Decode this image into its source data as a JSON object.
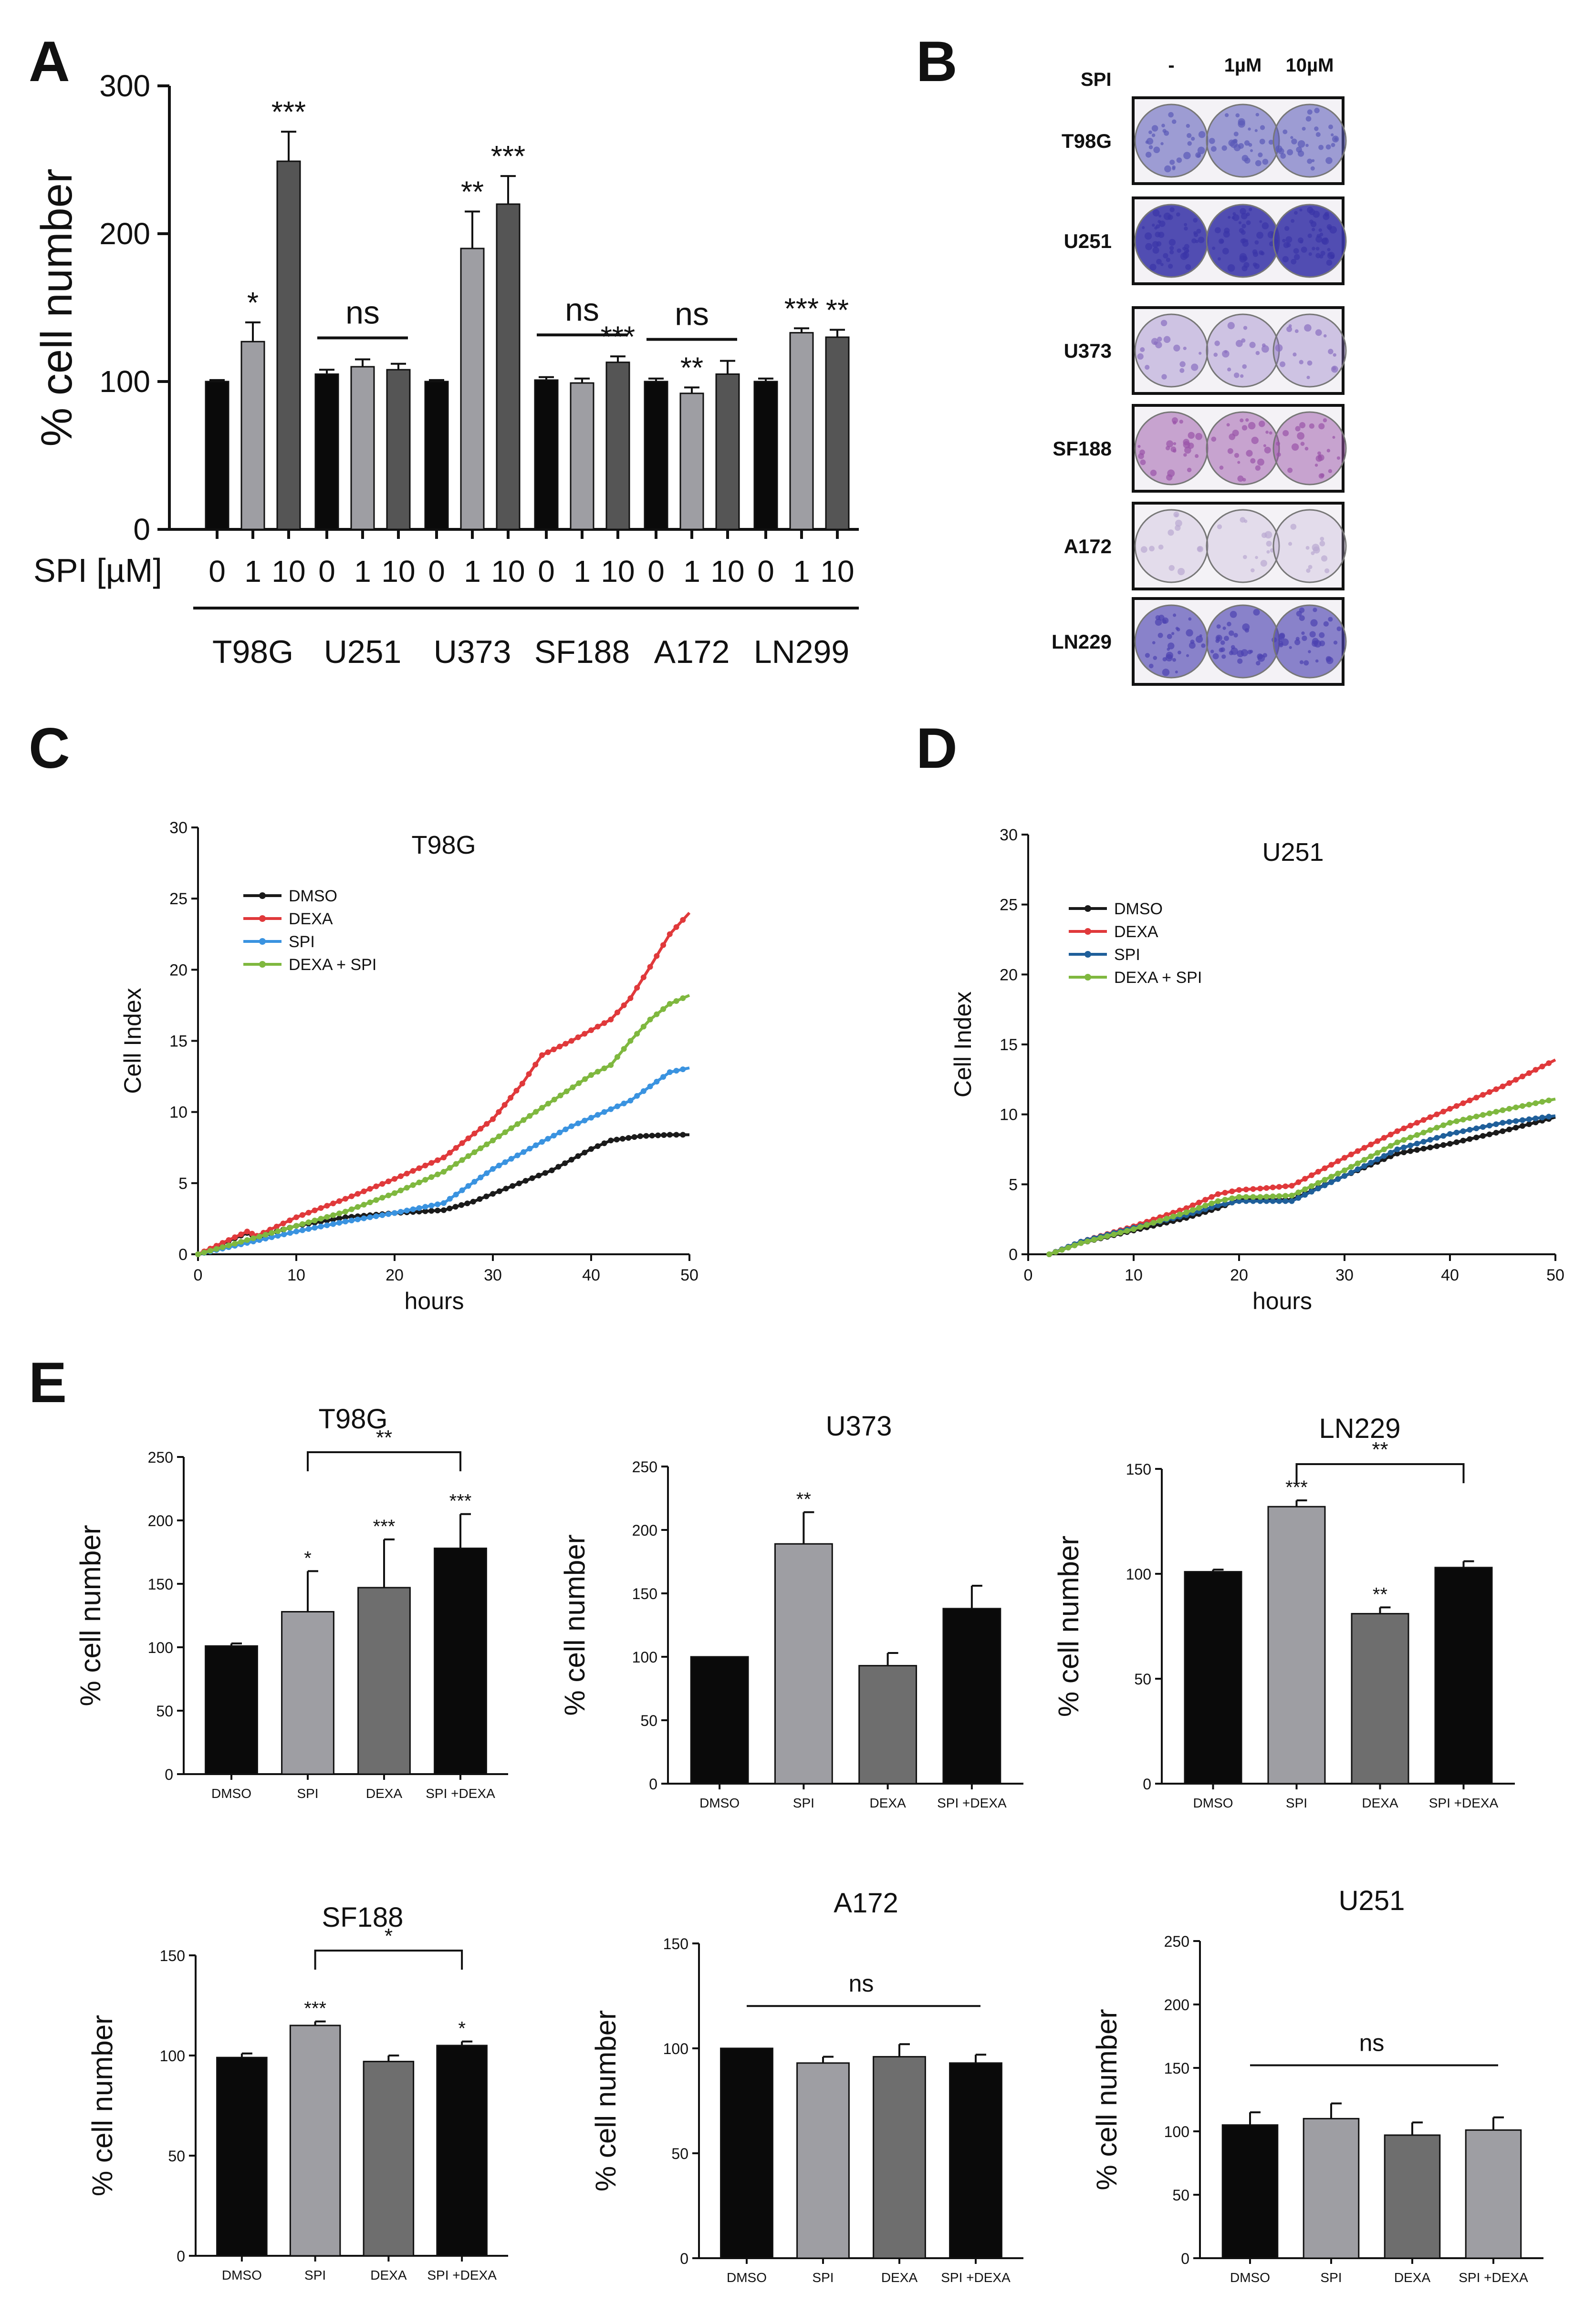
{
  "panel_letters": [
    "A",
    "B",
    "C",
    "D",
    "E"
  ],
  "chart_data": [
    {
      "panel": "A",
      "type": "bar",
      "ylabel": "% cell number",
      "ylim": [
        0,
        300
      ],
      "yticks": [
        0,
        100,
        200,
        300
      ],
      "dose_axis_label": "SPI [µM]",
      "doses": [
        "0",
        "1",
        "10"
      ],
      "groups": [
        {
          "name": "T98G",
          "values": [
            100,
            127,
            249
          ],
          "errors": [
            1,
            13,
            20
          ],
          "sig": [
            "",
            "*",
            "***"
          ],
          "group_sig": ""
        },
        {
          "name": "U251",
          "values": [
            105,
            110,
            108
          ],
          "errors": [
            3,
            5,
            4
          ],
          "sig": [
            "",
            "",
            ""
          ],
          "group_sig": "ns"
        },
        {
          "name": "U373",
          "values": [
            100,
            190,
            220
          ],
          "errors": [
            1,
            25,
            19
          ],
          "sig": [
            "",
            "**",
            "***"
          ],
          "group_sig": ""
        },
        {
          "name": "SF188",
          "values": [
            101,
            99,
            113
          ],
          "errors": [
            2,
            3,
            4
          ],
          "sig": [
            "",
            "",
            "***"
          ],
          "group_sig": "ns"
        },
        {
          "name": "A172",
          "values": [
            100,
            92,
            105
          ],
          "errors": [
            2,
            4,
            9
          ],
          "sig": [
            "",
            "**",
            ""
          ],
          "group_sig": "ns"
        },
        {
          "name": "LN299",
          "values": [
            100,
            133,
            130
          ],
          "errors": [
            2,
            3,
            5
          ],
          "sig": [
            "",
            "***",
            "**"
          ],
          "group_sig": ""
        }
      ],
      "bar_colors": [
        "#0a0a0a",
        "#9e9ea3",
        "#555555"
      ]
    },
    {
      "panel": "C",
      "type": "line",
      "title": "T98G",
      "xlabel": "hours",
      "ylabel": "Cell Index",
      "xlim": [
        0,
        50
      ],
      "ylim": [
        0,
        30
      ],
      "xticks": [
        0,
        10,
        20,
        30,
        40,
        50
      ],
      "yticks": [
        0,
        5,
        10,
        15,
        20,
        25,
        30
      ],
      "series": [
        {
          "name": "DMSO",
          "color": "#1a1a1a",
          "x": [
            0,
            5,
            6,
            10,
            15,
            20,
            25,
            28,
            32,
            36,
            40,
            42,
            45,
            48,
            50
          ],
          "y": [
            0,
            1.5,
            1.2,
            2.0,
            2.6,
            2.9,
            3.1,
            3.7,
            4.8,
            5.9,
            7.4,
            8.0,
            8.3,
            8.4,
            8.4
          ]
        },
        {
          "name": "DEXA",
          "color": "#e0393b",
          "x": [
            0,
            5,
            6,
            10,
            15,
            20,
            25,
            30,
            33,
            35,
            38,
            42,
            44,
            46,
            48,
            50
          ],
          "y": [
            0,
            1.6,
            1.3,
            2.6,
            3.9,
            5.3,
            6.8,
            9.5,
            12.0,
            14.0,
            15.0,
            16.5,
            18.0,
            20.2,
            22.5,
            24.0
          ]
        },
        {
          "name": "SPI",
          "color": "#3a93e0",
          "x": [
            0,
            5,
            10,
            15,
            20,
            25,
            30,
            35,
            38,
            42,
            44,
            46,
            48,
            50
          ],
          "y": [
            0,
            0.8,
            1.6,
            2.3,
            2.9,
            3.6,
            6.0,
            7.9,
            9.0,
            10.2,
            10.8,
            11.8,
            12.8,
            13.1
          ]
        },
        {
          "name": "DEXA + SPI",
          "color": "#7fb83f",
          "x": [
            0,
            5,
            10,
            15,
            20,
            25,
            30,
            35,
            40,
            42,
            44,
            46,
            48,
            50
          ],
          "y": [
            0,
            1.0,
            2.0,
            3.0,
            4.3,
            5.8,
            8.0,
            10.3,
            12.6,
            13.3,
            15.0,
            16.5,
            17.6,
            18.2
          ]
        }
      ]
    },
    {
      "panel": "D",
      "type": "line",
      "title": "U251",
      "xlabel": "hours",
      "ylabel": "Cell Index",
      "xlim": [
        0,
        50
      ],
      "ylim": [
        0,
        30
      ],
      "xticks": [
        0,
        10,
        20,
        30,
        40,
        50
      ],
      "yticks": [
        0,
        5,
        10,
        15,
        20,
        25,
        30
      ],
      "series": [
        {
          "name": "DMSO",
          "color": "#1a1a1a",
          "x": [
            2,
            5,
            10,
            15,
            18,
            20,
            22,
            25,
            30,
            35,
            40,
            45,
            50
          ],
          "y": [
            0,
            0.8,
            1.7,
            2.6,
            3.3,
            3.9,
            3.9,
            3.9,
            5.6,
            7.2,
            7.9,
            8.8,
            9.8
          ]
        },
        {
          "name": "DEXA",
          "color": "#e0393b",
          "x": [
            2,
            5,
            10,
            15,
            18,
            20,
            22,
            25,
            30,
            35,
            40,
            45,
            50
          ],
          "y": [
            0,
            0.9,
            2.0,
            3.3,
            4.3,
            4.6,
            4.7,
            4.9,
            6.9,
            8.8,
            10.4,
            12.0,
            13.9
          ]
        },
        {
          "name": "SPI",
          "color": "#1f5f9a",
          "x": [
            2,
            5,
            10,
            15,
            18,
            20,
            22,
            25,
            30,
            35,
            40,
            45,
            50
          ],
          "y": [
            0,
            0.9,
            1.9,
            2.8,
            3.5,
            3.8,
            3.8,
            3.8,
            5.6,
            7.5,
            8.6,
            9.4,
            9.9
          ]
        },
        {
          "name": "DEXA + SPI",
          "color": "#7fb83f",
          "x": [
            2,
            5,
            10,
            15,
            18,
            20,
            22,
            25,
            30,
            35,
            40,
            45,
            50
          ],
          "y": [
            0,
            0.8,
            1.8,
            3.0,
            3.8,
            4.1,
            4.1,
            4.2,
            6.0,
            8.0,
            9.4,
            10.3,
            11.1
          ]
        }
      ]
    },
    {
      "panel": "E",
      "type": "bar",
      "title": "T98G",
      "ylabel": "% cell number",
      "ylim": [
        0,
        250
      ],
      "yticks": [
        0,
        50,
        100,
        150,
        200,
        250
      ],
      "categories": [
        "DMSO",
        "SPI",
        "DEXA",
        "SPI +DEXA"
      ],
      "values": [
        101,
        128,
        147,
        178
      ],
      "errors": [
        2,
        32,
        38,
        27
      ],
      "colors": [
        "#0a0a0a",
        "#9e9ea3",
        "#6e6e6e",
        "#0a0a0a"
      ],
      "sig": [
        "",
        "*",
        "***",
        "***"
      ],
      "brackets": [
        {
          "from": 1,
          "to": 3,
          "label": "**"
        }
      ]
    },
    {
      "panel": "E",
      "type": "bar",
      "title": "U373",
      "ylabel": "% cell number",
      "ylim": [
        0,
        250
      ],
      "yticks": [
        0,
        50,
        100,
        150,
        200,
        250
      ],
      "categories": [
        "DMSO",
        "SPI",
        "DEXA",
        "SPI +DEXA"
      ],
      "values": [
        100,
        189,
        93,
        138
      ],
      "errors": [
        0,
        25,
        10,
        18
      ],
      "colors": [
        "#0a0a0a",
        "#9e9ea3",
        "#6e6e6e",
        "#0a0a0a"
      ],
      "sig": [
        "",
        "**",
        "",
        ""
      ],
      "brackets": []
    },
    {
      "panel": "E",
      "type": "bar",
      "title": "LN229",
      "ylabel": "% cell number",
      "ylim": [
        0,
        150
      ],
      "yticks": [
        0,
        50,
        100,
        150
      ],
      "categories": [
        "DMSO",
        "SPI",
        "DEXA",
        "SPI +DEXA"
      ],
      "values": [
        101,
        132,
        81,
        103
      ],
      "errors": [
        1,
        3,
        3,
        3
      ],
      "colors": [
        "#0a0a0a",
        "#9e9ea3",
        "#6e6e6e",
        "#0a0a0a"
      ],
      "sig": [
        "",
        "***",
        "**",
        ""
      ],
      "brackets": [
        {
          "from": 1,
          "to": 3,
          "label": "**"
        }
      ]
    },
    {
      "panel": "E",
      "type": "bar",
      "title": "SF188",
      "ylabel": "% cell number",
      "ylim": [
        0,
        150
      ],
      "yticks": [
        0,
        50,
        100,
        150
      ],
      "categories": [
        "DMSO",
        "SPI",
        "DEXA",
        "SPI +DEXA"
      ],
      "values": [
        99,
        115,
        97,
        105
      ],
      "errors": [
        2,
        2,
        3,
        2
      ],
      "colors": [
        "#0a0a0a",
        "#9e9ea3",
        "#6e6e6e",
        "#0a0a0a"
      ],
      "sig": [
        "",
        "***",
        "",
        "*"
      ],
      "brackets": [
        {
          "from": 1,
          "to": 3,
          "label": "*"
        }
      ]
    },
    {
      "panel": "E",
      "type": "bar",
      "title": "A172",
      "ylabel": "% cell number",
      "ylim": [
        0,
        150
      ],
      "yticks": [
        0,
        50,
        100,
        150
      ],
      "categories": [
        "DMSO",
        "SPI",
        "DEXA",
        "SPI +DEXA"
      ],
      "values": [
        100,
        93,
        96,
        93
      ],
      "errors": [
        0,
        3,
        6,
        4
      ],
      "colors": [
        "#0a0a0a",
        "#9e9ea3",
        "#6e6e6e",
        "#0a0a0a"
      ],
      "sig": [
        "",
        "",
        "",
        ""
      ],
      "brackets": [],
      "overall_label": "ns"
    },
    {
      "panel": "E",
      "type": "bar",
      "title": "U251",
      "ylabel": "% cell number",
      "ylim": [
        0,
        250
      ],
      "yticks": [
        0,
        50,
        100,
        150,
        200,
        250
      ],
      "categories": [
        "DMSO",
        "SPI",
        "DEXA",
        "SPI +DEXA"
      ],
      "values": [
        105,
        110,
        97,
        101
      ],
      "errors": [
        10,
        12,
        10,
        10
      ],
      "colors": [
        "#0a0a0a",
        "#9e9ea3",
        "#6e6e6e",
        "#9e9ea3"
      ],
      "sig": [
        "",
        "",
        "",
        ""
      ],
      "brackets": [],
      "overall_label": "ns"
    }
  ],
  "panel_b": {
    "header_label": "SPI",
    "columns": [
      "-",
      "1µM",
      "10µM"
    ],
    "rows": [
      {
        "name": "T98G",
        "tint": "#5a5ab8",
        "density": 0.45
      },
      {
        "name": "U251",
        "tint": "#3a35a8",
        "density": 0.9
      },
      {
        "name": "U373",
        "tint": "#8a6fc0",
        "density": 0.15
      },
      {
        "name": "SF188",
        "tint": "#9a52a8",
        "density": 0.35
      },
      {
        "name": "A172",
        "tint": "#b9a8d2",
        "density": 0.05
      },
      {
        "name": "LN229",
        "tint": "#4c42b0",
        "density": 0.55
      }
    ]
  }
}
